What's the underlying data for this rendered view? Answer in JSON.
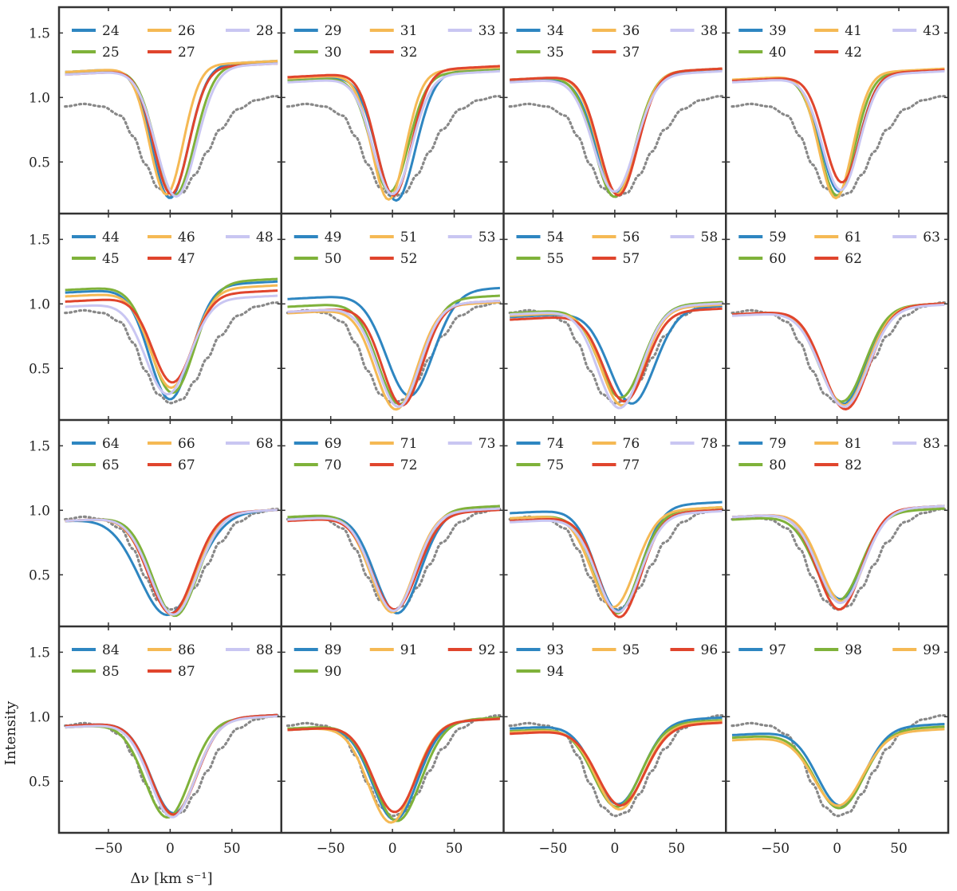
{
  "chart_data": {
    "type": "line",
    "ylabel": "Intensity",
    "xlabel": "Δν [km s⁻¹]",
    "xlim": [
      -90,
      90
    ],
    "ylim": [
      0.1,
      1.7
    ],
    "xticks": [
      -50,
      0,
      50
    ],
    "xtick_labels": [
      "−50",
      "0",
      "50"
    ],
    "yticks": [
      0.5,
      1.0,
      1.5
    ],
    "ytick_labels": [
      "0.5",
      "1.0",
      "1.5"
    ],
    "colors": [
      "#2e86c1",
      "#7fb23a",
      "#f5b954",
      "#e0452d",
      "#c9c6f2"
    ],
    "reference": {
      "name": "reference profile",
      "style": "dotted",
      "color": "#888888",
      "x": [
        -85,
        -70,
        -55,
        -40,
        -30,
        -20,
        -10,
        0,
        10,
        20,
        30,
        40,
        55,
        70,
        85
      ],
      "y": [
        0.93,
        0.95,
        0.93,
        0.86,
        0.7,
        0.48,
        0.3,
        0.23,
        0.26,
        0.4,
        0.58,
        0.75,
        0.91,
        0.98,
        1.01
      ]
    },
    "panels": [
      {
        "labels": [
          "24",
          "25",
          "26",
          "27",
          "28"
        ],
        "series": [
          {
            "name": "24",
            "color_idx": 0,
            "depth": 0.22,
            "center": 0,
            "width": 22,
            "cont": 1.24
          },
          {
            "name": "25",
            "color_idx": 1,
            "depth": 0.24,
            "center": 4,
            "width": 23,
            "cont": 1.23
          },
          {
            "name": "26",
            "color_idx": 2,
            "depth": 0.25,
            "center": -3,
            "width": 20,
            "cont": 1.24
          },
          {
            "name": "27",
            "color_idx": 3,
            "depth": 0.25,
            "center": 1,
            "width": 21,
            "cont": 1.22
          },
          {
            "name": "28",
            "color_idx": 4,
            "depth": 0.23,
            "center": 5,
            "width": 24,
            "cont": 1.22
          }
        ]
      },
      {
        "labels": [
          "29",
          "30",
          "31",
          "32",
          "33"
        ],
        "series": [
          {
            "name": "29",
            "color_idx": 0,
            "depth": 0.2,
            "center": 3,
            "width": 23,
            "cont": 1.18
          },
          {
            "name": "30",
            "color_idx": 1,
            "depth": 0.27,
            "center": -2,
            "width": 22,
            "cont": 1.17
          },
          {
            "name": "31",
            "color_idx": 2,
            "depth": 0.21,
            "center": -3,
            "width": 20,
            "cont": 1.19
          },
          {
            "name": "32",
            "color_idx": 3,
            "depth": 0.24,
            "center": 1,
            "width": 21,
            "cont": 1.2
          },
          {
            "name": "33",
            "color_idx": 4,
            "depth": 0.25,
            "center": 0,
            "width": 23,
            "cont": 1.16
          }
        ]
      },
      {
        "labels": [
          "34",
          "35",
          "36",
          "37",
          "38"
        ],
        "series": [
          {
            "name": "34",
            "color_idx": 0,
            "depth": 0.26,
            "center": 1,
            "width": 24,
            "cont": 1.17
          },
          {
            "name": "35",
            "color_idx": 1,
            "depth": 0.23,
            "center": 0,
            "width": 24,
            "cont": 1.18
          },
          {
            "name": "36",
            "color_idx": 2,
            "depth": 0.25,
            "center": 2,
            "width": 23,
            "cont": 1.18
          },
          {
            "name": "37",
            "color_idx": 3,
            "depth": 0.24,
            "center": 3,
            "width": 23,
            "cont": 1.18
          },
          {
            "name": "38",
            "color_idx": 4,
            "depth": 0.27,
            "center": 0,
            "width": 25,
            "cont": 1.16
          }
        ]
      },
      {
        "labels": [
          "39",
          "40",
          "41",
          "42",
          "43"
        ],
        "series": [
          {
            "name": "39",
            "color_idx": 0,
            "depth": 0.27,
            "center": 2,
            "width": 22,
            "cont": 1.17
          },
          {
            "name": "40",
            "color_idx": 1,
            "depth": 0.24,
            "center": 0,
            "width": 21,
            "cont": 1.17
          },
          {
            "name": "41",
            "color_idx": 2,
            "depth": 0.22,
            "center": -1,
            "width": 20,
            "cont": 1.18
          },
          {
            "name": "42",
            "color_idx": 3,
            "depth": 0.34,
            "center": 4,
            "width": 21,
            "cont": 1.17
          },
          {
            "name": "43",
            "color_idx": 4,
            "depth": 0.28,
            "center": 3,
            "width": 22,
            "cont": 1.16
          }
        ]
      },
      {
        "labels": [
          "44",
          "45",
          "46",
          "47",
          "48"
        ],
        "series": [
          {
            "name": "44",
            "color_idx": 0,
            "depth": 0.26,
            "center": 0,
            "width": 25,
            "cont": 1.13
          },
          {
            "name": "45",
            "color_idx": 1,
            "depth": 0.31,
            "center": 2,
            "width": 26,
            "cont": 1.15
          },
          {
            "name": "46",
            "color_idx": 2,
            "depth": 0.35,
            "center": 1,
            "width": 25,
            "cont": 1.1
          },
          {
            "name": "47",
            "color_idx": 3,
            "depth": 0.39,
            "center": 2,
            "width": 24,
            "cont": 1.06
          },
          {
            "name": "48",
            "color_idx": 4,
            "depth": 0.3,
            "center": -2,
            "width": 26,
            "cont": 1.02
          }
        ]
      },
      {
        "labels": [
          "49",
          "50",
          "51",
          "52",
          "53"
        ],
        "series": [
          {
            "name": "49",
            "color_idx": 0,
            "depth": 0.28,
            "center": 14,
            "width": 28,
            "cont": 1.08
          },
          {
            "name": "50",
            "color_idx": 1,
            "depth": 0.22,
            "center": 6,
            "width": 26,
            "cont": 1.02
          },
          {
            "name": "51",
            "color_idx": 2,
            "depth": 0.18,
            "center": 3,
            "width": 25,
            "cont": 0.97
          },
          {
            "name": "52",
            "color_idx": 3,
            "depth": 0.21,
            "center": 8,
            "width": 24,
            "cont": 0.98
          },
          {
            "name": "53",
            "color_idx": 4,
            "depth": 0.2,
            "center": 5,
            "width": 25,
            "cont": 0.98
          }
        ]
      },
      {
        "labels": [
          "54",
          "55",
          "56",
          "57",
          "58"
        ],
        "series": [
          {
            "name": "54",
            "color_idx": 0,
            "depth": 0.22,
            "center": 14,
            "width": 27,
            "cont": 0.94
          },
          {
            "name": "55",
            "color_idx": 1,
            "depth": 0.27,
            "center": 5,
            "width": 26,
            "cont": 0.97
          },
          {
            "name": "56",
            "color_idx": 2,
            "depth": 0.21,
            "center": 6,
            "width": 25,
            "cont": 0.95
          },
          {
            "name": "57",
            "color_idx": 3,
            "depth": 0.24,
            "center": 8,
            "width": 25,
            "cont": 0.92
          },
          {
            "name": "58",
            "color_idx": 4,
            "depth": 0.19,
            "center": 4,
            "width": 26,
            "cont": 0.96
          }
        ]
      },
      {
        "labels": [
          "59",
          "60",
          "61",
          "62",
          "63"
        ],
        "series": [
          {
            "name": "59",
            "color_idx": 0,
            "depth": 0.22,
            "center": 5,
            "width": 27,
            "cont": 0.96
          },
          {
            "name": "60",
            "color_idx": 1,
            "depth": 0.24,
            "center": 4,
            "width": 27,
            "cont": 0.96
          },
          {
            "name": "61",
            "color_idx": 2,
            "depth": 0.21,
            "center": 6,
            "width": 27,
            "cont": 0.96
          },
          {
            "name": "62",
            "color_idx": 3,
            "depth": 0.18,
            "center": 7,
            "width": 27,
            "cont": 0.96
          },
          {
            "name": "63",
            "color_idx": 4,
            "depth": 0.2,
            "center": 6,
            "width": 28,
            "cont": 0.95
          }
        ]
      },
      {
        "labels": [
          "64",
          "65",
          "66",
          "67",
          "68"
        ],
        "series": [
          {
            "name": "64",
            "color_idx": 0,
            "depth": 0.19,
            "center": -2,
            "width": 34,
            "cont": 0.96
          },
          {
            "name": "65",
            "color_idx": 1,
            "depth": 0.18,
            "center": 4,
            "width": 27,
            "cont": 0.96
          },
          {
            "name": "66",
            "color_idx": 2,
            "depth": 0.19,
            "center": 2,
            "width": 28,
            "cont": 0.96
          },
          {
            "name": "67",
            "color_idx": 3,
            "depth": 0.2,
            "center": 1,
            "width": 27,
            "cont": 0.96
          },
          {
            "name": "68",
            "color_idx": 4,
            "depth": 0.19,
            "center": 3,
            "width": 28,
            "cont": 0.96
          }
        ]
      },
      {
        "labels": [
          "69",
          "70",
          "71",
          "72",
          "73"
        ],
        "series": [
          {
            "name": "69",
            "color_idx": 0,
            "depth": 0.2,
            "center": 4,
            "width": 27,
            "cont": 0.98
          },
          {
            "name": "70",
            "color_idx": 1,
            "depth": 0.22,
            "center": 1,
            "width": 27,
            "cont": 0.99
          },
          {
            "name": "71",
            "color_idx": 2,
            "depth": 0.21,
            "center": 0,
            "width": 26,
            "cont": 0.97
          },
          {
            "name": "72",
            "color_idx": 3,
            "depth": 0.23,
            "center": 2,
            "width": 27,
            "cont": 0.96
          },
          {
            "name": "73",
            "color_idx": 4,
            "depth": 0.22,
            "center": 1,
            "width": 26,
            "cont": 0.97
          }
        ]
      },
      {
        "labels": [
          "74",
          "75",
          "76",
          "77",
          "78"
        ],
        "series": [
          {
            "name": "74",
            "color_idx": 0,
            "depth": 0.22,
            "center": 3,
            "width": 26,
            "cont": 1.02
          },
          {
            "name": "75",
            "color_idx": 1,
            "depth": 0.2,
            "center": 2,
            "width": 26,
            "cont": 0.98
          },
          {
            "name": "76",
            "color_idx": 2,
            "depth": 0.25,
            "center": -1,
            "width": 26,
            "cont": 0.98
          },
          {
            "name": "77",
            "color_idx": 3,
            "depth": 0.17,
            "center": 4,
            "width": 25,
            "cont": 0.96
          },
          {
            "name": "78",
            "color_idx": 4,
            "depth": 0.21,
            "center": 3,
            "width": 26,
            "cont": 0.95
          }
        ]
      },
      {
        "labels": [
          "79",
          "80",
          "81",
          "82",
          "83"
        ],
        "series": [
          {
            "name": "79",
            "color_idx": 0,
            "depth": 0.31,
            "center": 3,
            "width": 27,
            "cont": 0.99
          },
          {
            "name": "80",
            "color_idx": 1,
            "depth": 0.3,
            "center": 1,
            "width": 27,
            "cont": 0.97
          },
          {
            "name": "81",
            "color_idx": 2,
            "depth": 0.29,
            "center": 4,
            "width": 26,
            "cont": 0.99
          },
          {
            "name": "82",
            "color_idx": 3,
            "depth": 0.23,
            "center": 2,
            "width": 26,
            "cont": 0.99
          },
          {
            "name": "83",
            "color_idx": 4,
            "depth": 0.28,
            "center": 3,
            "width": 27,
            "cont": 0.99
          }
        ]
      },
      {
        "labels": [
          "84",
          "85",
          "86",
          "87",
          "88"
        ],
        "series": [
          {
            "name": "84",
            "color_idx": 0,
            "depth": 0.25,
            "center": 3,
            "width": 27,
            "cont": 0.97
          },
          {
            "name": "85",
            "color_idx": 1,
            "depth": 0.22,
            "center": -2,
            "width": 27,
            "cont": 0.96
          },
          {
            "name": "86",
            "color_idx": 2,
            "depth": 0.23,
            "center": 2,
            "width": 27,
            "cont": 0.96
          },
          {
            "name": "87",
            "color_idx": 3,
            "depth": 0.24,
            "center": 3,
            "width": 27,
            "cont": 0.97
          },
          {
            "name": "88",
            "color_idx": 4,
            "depth": 0.22,
            "center": 2,
            "width": 27,
            "cont": 0.96
          }
        ]
      },
      {
        "labels": [
          "89",
          "90",
          "91",
          "92"
        ],
        "series": [
          {
            "name": "89",
            "color_idx": 0,
            "depth": 0.2,
            "center": 2,
            "width": 27,
            "cont": 0.94
          },
          {
            "name": "90",
            "color_idx": 1,
            "depth": 0.19,
            "center": 4,
            "width": 28,
            "cont": 0.95
          },
          {
            "name": "91",
            "color_idx": 2,
            "depth": 0.18,
            "center": -1,
            "width": 27,
            "cont": 0.94
          },
          {
            "name": "92",
            "color_idx": 3,
            "depth": 0.26,
            "center": 2,
            "width": 26,
            "cont": 0.94
          }
        ]
      },
      {
        "labels": [
          "93",
          "94",
          "95",
          "96"
        ],
        "series": [
          {
            "name": "93",
            "color_idx": 0,
            "depth": 0.32,
            "center": 3,
            "width": 28,
            "cont": 0.95
          },
          {
            "name": "94",
            "color_idx": 1,
            "depth": 0.3,
            "center": 2,
            "width": 28,
            "cont": 0.93
          },
          {
            "name": "95",
            "color_idx": 2,
            "depth": 0.28,
            "center": 4,
            "width": 28,
            "cont": 0.92
          },
          {
            "name": "96",
            "color_idx": 3,
            "depth": 0.31,
            "center": 5,
            "width": 28,
            "cont": 0.91
          }
        ]
      },
      {
        "labels": [
          "97",
          "98",
          "99"
        ],
        "series": [
          {
            "name": "97",
            "color_idx": 0,
            "depth": 0.31,
            "center": 3,
            "width": 28,
            "cont": 0.9
          },
          {
            "name": "98",
            "color_idx": 1,
            "depth": 0.29,
            "center": 2,
            "width": 29,
            "cont": 0.88
          },
          {
            "name": "99",
            "color_idx": 2,
            "depth": 0.31,
            "center": 1,
            "width": 29,
            "cont": 0.86
          }
        ]
      }
    ]
  }
}
